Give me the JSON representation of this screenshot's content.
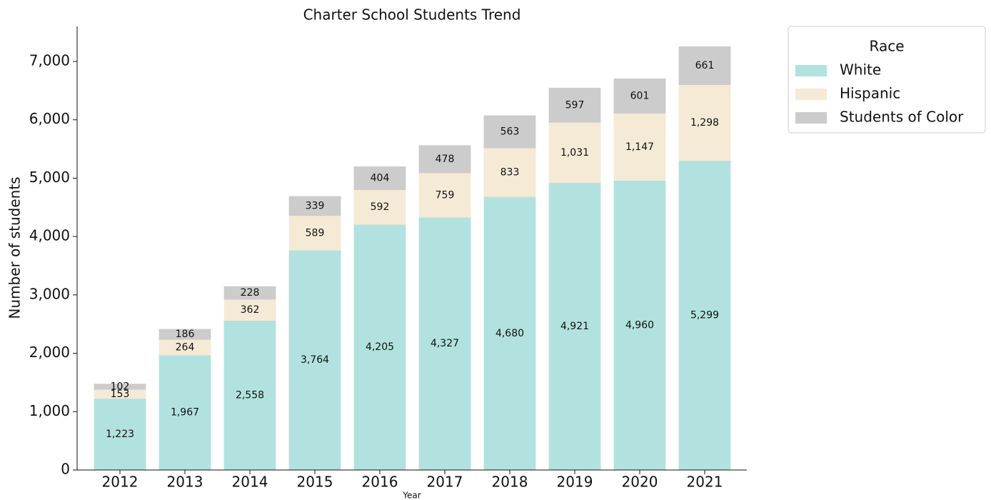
{
  "chart_data": {
    "type": "stacked_bar",
    "title": "Charter School Students Trend",
    "x_label": "Year",
    "y_label": "Number of students",
    "categories": [
      "2012",
      "2013",
      "2014",
      "2015",
      "2016",
      "2017",
      "2018",
      "2019",
      "2020",
      "2021"
    ],
    "series": [
      {
        "name": "White",
        "color": "#b2e2df",
        "values": [
          1223,
          1967,
          2558,
          3764,
          4205,
          4327,
          4680,
          4921,
          4960,
          5299
        ],
        "value_labels": [
          "1,223",
          "1,967",
          "2,558",
          "3,764",
          "4,205",
          "4,327",
          "4,680",
          "4,921",
          "4,960",
          "5,299"
        ]
      },
      {
        "name": "Hispanic",
        "color": "#f5ead6",
        "values": [
          153,
          264,
          362,
          589,
          592,
          759,
          833,
          1031,
          1147,
          1298
        ],
        "value_labels": [
          "153",
          "264",
          "362",
          "589",
          "592",
          "759",
          "833",
          "1,031",
          "1,147",
          "1,298"
        ]
      },
      {
        "name": "Students of Color",
        "color": "#cccccc",
        "values": [
          102,
          186,
          228,
          339,
          404,
          478,
          563,
          597,
          601,
          661
        ],
        "value_labels": [
          "102",
          "186",
          "228",
          "339",
          "404",
          "478",
          "563",
          "597",
          "601",
          "661"
        ]
      }
    ],
    "ylim": [
      0,
      7600
    ],
    "yticks": [
      0,
      {
        "value": 1000,
        "label": "1,000"
      },
      {
        "value": 2000,
        "label": "2,000"
      },
      {
        "value": 3000,
        "label": "3,000"
      },
      {
        "value": 4000,
        "label": "4,000"
      },
      {
        "value": 5000,
        "label": "5,000"
      },
      {
        "value": 6000,
        "label": "6,000"
      },
      {
        "value": 7000,
        "label": "7,000"
      }
    ],
    "legend_title": "Race",
    "legend_position": "outside-upper-right",
    "grid": false
  }
}
